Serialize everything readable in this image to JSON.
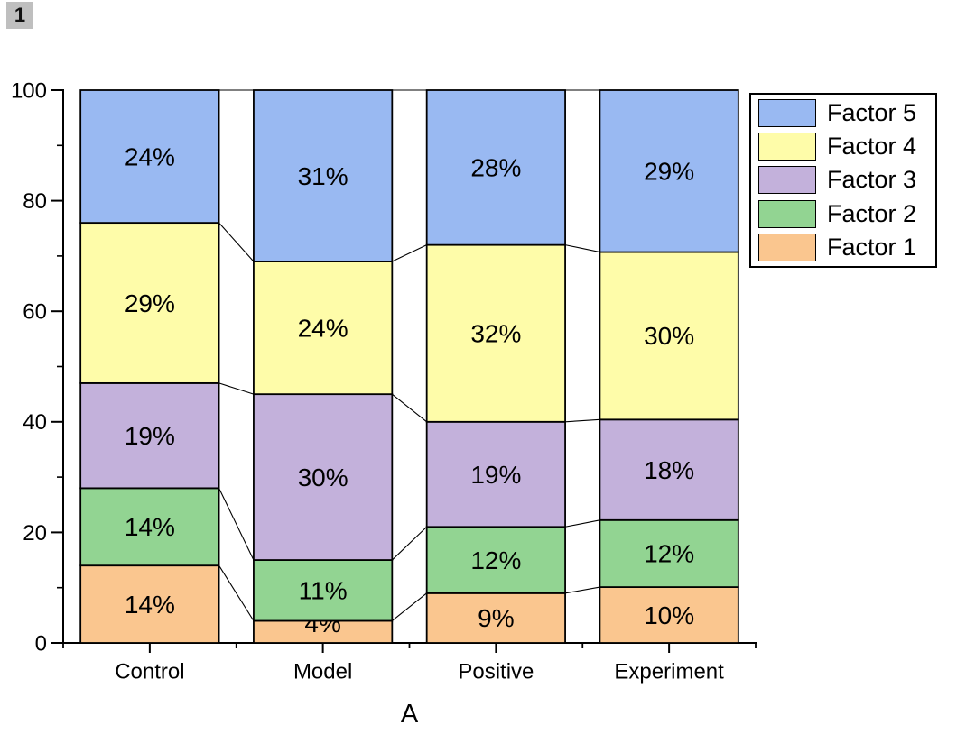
{
  "window": {
    "badge": "1"
  },
  "chart_data": {
    "type": "bar",
    "stacking": "percent",
    "title": "",
    "xlabel": "A",
    "ylabel": "",
    "ylim": [
      0,
      100
    ],
    "yticks_major": [
      0,
      20,
      40,
      60,
      80,
      100
    ],
    "yticks_minor": [
      10,
      30,
      50,
      70,
      90
    ],
    "categories": [
      "Control",
      "Model",
      "Positive",
      "Experiment"
    ],
    "series": [
      {
        "name": "Factor 1",
        "color": "#FAC68F",
        "values": [
          14,
          4,
          9,
          10
        ]
      },
      {
        "name": "Factor 2",
        "color": "#92D492",
        "values": [
          14,
          11,
          12,
          12
        ]
      },
      {
        "name": "Factor 3",
        "color": "#C3B1DB",
        "values": [
          19,
          30,
          19,
          18
        ]
      },
      {
        "name": "Factor 4",
        "color": "#FEFCA9",
        "values": [
          29,
          24,
          32,
          30
        ]
      },
      {
        "name": "Factor 5",
        "color": "#99B9F2",
        "values": [
          24,
          31,
          28,
          29
        ]
      }
    ],
    "data_label_format": "{value}%",
    "connector_lines": true,
    "grid": false,
    "axis_color": "#000000",
    "legend": {
      "position": "right",
      "entries": [
        {
          "label": "Factor 5",
          "color": "#99B9F2"
        },
        {
          "label": "Factor 4",
          "color": "#FEFCA9"
        },
        {
          "label": "Factor 3",
          "color": "#C3B1DB"
        },
        {
          "label": "Factor 2",
          "color": "#92D492"
        },
        {
          "label": "Factor 1",
          "color": "#FAC68F"
        }
      ]
    }
  }
}
